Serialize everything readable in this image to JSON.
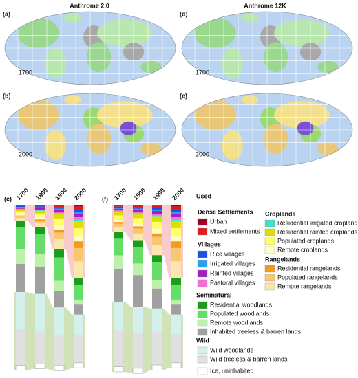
{
  "titles": [
    "Anthrome 2.0",
    "Anthrome 12K"
  ],
  "maps": [
    {
      "label": "(a)",
      "year": "1700"
    },
    {
      "label": "(b)",
      "year": "2000"
    },
    {
      "label": "(d)",
      "year": "1700"
    },
    {
      "label": "(e)",
      "year": "2000"
    }
  ],
  "legend_headings": [
    "Used",
    "Dense Settlements",
    "Villages",
    "Croplands",
    "Rangelands",
    "Seminatural",
    "Wild"
  ],
  "chart_data": [
    {
      "type": "stacked-bar",
      "label": "(c)",
      "categories": [
        "1700",
        "1800",
        "1900",
        "2000"
      ],
      "series": [
        {
          "name": "Urban",
          "color": "#a50026",
          "values": [
            0.3,
            0.3,
            0.4,
            1
          ]
        },
        {
          "name": "Mixed settlements",
          "color": "#e31a1c",
          "values": [
            0.5,
            0.6,
            1,
            2
          ]
        },
        {
          "name": "Rice villages",
          "color": "#1f4fe0",
          "values": [
            0.5,
            0.7,
            1,
            1.5
          ]
        },
        {
          "name": "Irrigated villages",
          "color": "#2ca0e8",
          "values": [
            0.3,
            0.4,
            0.6,
            1
          ]
        },
        {
          "name": "Rainfed villages",
          "color": "#a020c0",
          "values": [
            0.8,
            1,
            1.5,
            2
          ]
        },
        {
          "name": "Pastoral villages",
          "color": "#f070d8",
          "values": [
            0.3,
            0.4,
            0.6,
            1
          ]
        },
        {
          "name": "Residential irrigated croplands",
          "color": "#40e0c8",
          "values": [
            0.3,
            0.4,
            0.6,
            1.5
          ]
        },
        {
          "name": "Residential rainfed croplands",
          "color": "#dede00",
          "values": [
            1,
            1.5,
            2.5,
            4
          ]
        },
        {
          "name": "Populated croplands",
          "color": "#ffff66",
          "values": [
            1.5,
            2,
            4,
            5
          ]
        },
        {
          "name": "Remote croplands",
          "color": "#ffffc4",
          "values": [
            1,
            1.5,
            3,
            3
          ]
        },
        {
          "name": "Residential rangelands",
          "color": "#f59a20",
          "values": [
            0.5,
            0.8,
            1.5,
            4
          ]
        },
        {
          "name": "Populated rangelands",
          "color": "#f8c870",
          "values": [
            1,
            1.5,
            4,
            8
          ]
        },
        {
          "name": "Remote rangelands",
          "color": "#fbe6b0",
          "values": [
            1.5,
            2.5,
            6,
            10
          ]
        },
        {
          "name": "Residential woodlands",
          "color": "#1a9e1a",
          "values": [
            4,
            4,
            5,
            4
          ]
        },
        {
          "name": "Populated woodlands",
          "color": "#66dd66",
          "values": [
            13,
            12,
            14,
            9
          ]
        },
        {
          "name": "Remote woodlands",
          "color": "#bdf0aa",
          "values": [
            9,
            8,
            6,
            3
          ]
        },
        {
          "name": "Inhabited treeless & barren lands",
          "color": "#a0a0a0",
          "values": [
            17,
            16,
            10,
            6
          ]
        },
        {
          "name": "Wild woodlands",
          "color": "#d4f0ec",
          "values": [
            22,
            22,
            17,
            12
          ]
        },
        {
          "name": "Wild treeless & barren lands",
          "color": "#e0e0e0",
          "values": [
            22,
            20,
            18,
            17
          ]
        },
        {
          "name": "Ice, uninhabited",
          "color": "#ffffff",
          "values": [
            3,
            3,
            3,
            3
          ]
        }
      ]
    },
    {
      "type": "stacked-bar",
      "label": "(f)",
      "categories": [
        "1700",
        "1800",
        "1900",
        "2000"
      ],
      "series": [
        {
          "values": [
            0.3,
            0.4,
            0.5,
            1
          ]
        },
        {
          "values": [
            0.8,
            1,
            1.2,
            2
          ]
        },
        {
          "values": [
            0.8,
            1,
            1.2,
            1.5
          ]
        },
        {
          "values": [
            0.5,
            0.6,
            0.8,
            1
          ]
        },
        {
          "values": [
            1,
            1.3,
            2,
            2
          ]
        },
        {
          "values": [
            0.5,
            0.6,
            0.8,
            1
          ]
        },
        {
          "values": [
            0.5,
            0.6,
            0.8,
            1.5
          ]
        },
        {
          "values": [
            2,
            2.5,
            3,
            4
          ]
        },
        {
          "values": [
            2.5,
            3,
            4,
            5
          ]
        },
        {
          "values": [
            1.5,
            2,
            3,
            3
          ]
        },
        {
          "values": [
            1,
            1.3,
            2,
            4
          ]
        },
        {
          "values": [
            2,
            3,
            5,
            8
          ]
        },
        {
          "values": [
            3,
            4,
            6,
            10
          ]
        },
        {
          "values": [
            4,
            4,
            4,
            4
          ]
        },
        {
          "values": [
            10,
            10,
            11,
            9
          ]
        },
        {
          "values": [
            8,
            7,
            5,
            3
          ]
        },
        {
          "values": [
            20,
            19,
            12,
            6
          ]
        },
        {
          "values": [
            17,
            16,
            14,
            12
          ]
        },
        {
          "values": [
            22,
            21,
            20,
            17
          ]
        },
        {
          "values": [
            3,
            3,
            3,
            3
          ]
        }
      ]
    }
  ]
}
